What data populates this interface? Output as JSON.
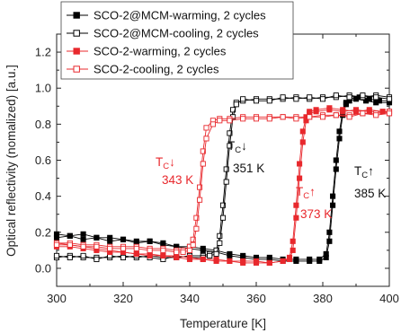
{
  "chart_data": {
    "type": "scatter",
    "xlabel": "Temperature [K]",
    "ylabel": "Optical reflectivity (nomalized) [a.u.]",
    "xlim": [
      300,
      400
    ],
    "ylim": [
      -0.1,
      1.3
    ],
    "xticks": [
      300,
      320,
      340,
      360,
      380,
      400
    ],
    "yticks": [
      0.0,
      0.2,
      0.4,
      0.6,
      0.8,
      1.0,
      1.2
    ],
    "ytick_labels": [
      "0.0",
      "0.2",
      "0.4",
      "0.6",
      "0.8",
      "1.0",
      "1.2"
    ],
    "grid": false,
    "legend_position": "top-left",
    "series": [
      {
        "name": "SCO-2@MCM-warming, 2 cycles",
        "color": "#000000",
        "marker": "filled-square",
        "cycles": [
          [
            [
              300,
              0.17
            ],
            [
              304,
              0.18
            ],
            [
              308,
              0.16
            ],
            [
              312,
              0.17
            ],
            [
              316,
              0.15
            ],
            [
              320,
              0.16
            ],
            [
              324,
              0.14
            ],
            [
              328,
              0.15
            ],
            [
              332,
              0.13
            ],
            [
              336,
              0.12
            ],
            [
              340,
              0.11
            ],
            [
              344,
              0.1
            ],
            [
              348,
              0.09
            ],
            [
              352,
              0.07
            ],
            [
              356,
              0.06
            ],
            [
              360,
              0.05
            ],
            [
              364,
              0.05
            ],
            [
              368,
              0.04
            ],
            [
              372,
              0.04
            ],
            [
              376,
              0.04
            ],
            [
              379,
              0.04
            ],
            [
              381,
              0.06
            ],
            [
              382,
              0.15
            ],
            [
              383,
              0.35
            ],
            [
              384,
              0.55
            ],
            [
              385,
              0.72
            ],
            [
              386,
              0.85
            ],
            [
              387,
              0.91
            ],
            [
              388,
              0.93
            ],
            [
              390,
              0.94
            ],
            [
              393,
              0.93
            ],
            [
              396,
              0.92
            ],
            [
              400,
              0.92
            ]
          ],
          [
            [
              300,
              0.19
            ],
            [
              304,
              0.18
            ],
            [
              308,
              0.19
            ],
            [
              312,
              0.17
            ],
            [
              316,
              0.17
            ],
            [
              320,
              0.16
            ],
            [
              324,
              0.15
            ],
            [
              328,
              0.15
            ],
            [
              332,
              0.14
            ],
            [
              336,
              0.12
            ],
            [
              340,
              0.12
            ],
            [
              344,
              0.11
            ],
            [
              348,
              0.1
            ],
            [
              352,
              0.08
            ],
            [
              356,
              0.07
            ],
            [
              360,
              0.06
            ],
            [
              364,
              0.06
            ],
            [
              368,
              0.05
            ],
            [
              372,
              0.05
            ],
            [
              376,
              0.05
            ],
            [
              379,
              0.05
            ],
            [
              381,
              0.08
            ],
            [
              382,
              0.2
            ],
            [
              383,
              0.4
            ],
            [
              384,
              0.6
            ],
            [
              385,
              0.76
            ],
            [
              386,
              0.87
            ],
            [
              387,
              0.92
            ],
            [
              388,
              0.94
            ],
            [
              391,
              0.95
            ],
            [
              394,
              0.94
            ],
            [
              397,
              0.93
            ],
            [
              400,
              0.93
            ]
          ]
        ]
      },
      {
        "name": "SCO-2@MCM-cooling, 2 cycles",
        "color": "#000000",
        "marker": "open-square",
        "cycles": [
          [
            [
              400,
              0.95
            ],
            [
              396,
              0.96
            ],
            [
              392,
              0.95
            ],
            [
              388,
              0.96
            ],
            [
              384,
              0.95
            ],
            [
              380,
              0.95
            ],
            [
              376,
              0.94
            ],
            [
              372,
              0.95
            ],
            [
              368,
              0.94
            ],
            [
              364,
              0.94
            ],
            [
              360,
              0.94
            ],
            [
              356,
              0.93
            ],
            [
              354,
              0.92
            ],
            [
              353,
              0.88
            ],
            [
              352,
              0.75
            ],
            [
              351,
              0.55
            ],
            [
              350,
              0.35
            ],
            [
              349,
              0.18
            ],
            [
              348,
              0.1
            ],
            [
              346,
              0.08
            ],
            [
              344,
              0.07
            ],
            [
              340,
              0.07
            ],
            [
              336,
              0.06
            ],
            [
              332,
              0.06
            ],
            [
              328,
              0.07
            ],
            [
              324,
              0.06
            ],
            [
              320,
              0.07
            ],
            [
              316,
              0.06
            ],
            [
              312,
              0.06
            ],
            [
              308,
              0.06
            ],
            [
              304,
              0.07
            ],
            [
              300,
              0.06
            ]
          ],
          [
            [
              400,
              0.94
            ],
            [
              396,
              0.95
            ],
            [
              392,
              0.96
            ],
            [
              388,
              0.95
            ],
            [
              384,
              0.96
            ],
            [
              380,
              0.94
            ],
            [
              376,
              0.95
            ],
            [
              372,
              0.94
            ],
            [
              368,
              0.95
            ],
            [
              364,
              0.93
            ],
            [
              360,
              0.93
            ],
            [
              356,
              0.94
            ],
            [
              354,
              0.91
            ],
            [
              353,
              0.84
            ],
            [
              352,
              0.68
            ],
            [
              351,
              0.48
            ],
            [
              350,
              0.28
            ],
            [
              349,
              0.14
            ],
            [
              348,
              0.08
            ],
            [
              346,
              0.07
            ],
            [
              344,
              0.06
            ],
            [
              340,
              0.06
            ],
            [
              336,
              0.07
            ],
            [
              332,
              0.05
            ],
            [
              328,
              0.06
            ],
            [
              324,
              0.07
            ],
            [
              320,
              0.06
            ],
            [
              316,
              0.07
            ],
            [
              312,
              0.05
            ],
            [
              308,
              0.07
            ],
            [
              304,
              0.06
            ],
            [
              300,
              0.07
            ]
          ]
        ]
      },
      {
        "name": "SCO-2-warming, 2 cycles",
        "color": "#e8282d",
        "marker": "filled-square",
        "cycles": [
          [
            [
              300,
              0.14
            ],
            [
              304,
              0.13
            ],
            [
              308,
              0.12
            ],
            [
              312,
              0.11
            ],
            [
              316,
              0.1
            ],
            [
              320,
              0.09
            ],
            [
              324,
              0.08
            ],
            [
              328,
              0.08
            ],
            [
              332,
              0.07
            ],
            [
              336,
              0.07
            ],
            [
              340,
              0.06
            ],
            [
              344,
              0.05
            ],
            [
              348,
              0.05
            ],
            [
              352,
              0.04
            ],
            [
              356,
              0.04
            ],
            [
              360,
              0.04
            ],
            [
              364,
              0.03
            ],
            [
              368,
              0.04
            ],
            [
              370,
              0.05
            ],
            [
              371,
              0.1
            ],
            [
              372,
              0.28
            ],
            [
              373,
              0.5
            ],
            [
              374,
              0.7
            ],
            [
              375,
              0.82
            ],
            [
              376,
              0.86
            ],
            [
              378,
              0.87
            ],
            [
              382,
              0.88
            ],
            [
              386,
              0.87
            ],
            [
              390,
              0.88
            ],
            [
              394,
              0.87
            ],
            [
              398,
              0.87
            ],
            [
              400,
              0.86
            ]
          ],
          [
            [
              300,
              0.12
            ],
            [
              304,
              0.12
            ],
            [
              308,
              0.11
            ],
            [
              312,
              0.1
            ],
            [
              316,
              0.09
            ],
            [
              320,
              0.09
            ],
            [
              324,
              0.08
            ],
            [
              328,
              0.07
            ],
            [
              332,
              0.07
            ],
            [
              336,
              0.06
            ],
            [
              340,
              0.05
            ],
            [
              344,
              0.05
            ],
            [
              348,
              0.04
            ],
            [
              352,
              0.04
            ],
            [
              356,
              0.03
            ],
            [
              360,
              0.03
            ],
            [
              364,
              0.03
            ],
            [
              368,
              0.04
            ],
            [
              370,
              0.06
            ],
            [
              371,
              0.15
            ],
            [
              372,
              0.35
            ],
            [
              373,
              0.58
            ],
            [
              374,
              0.76
            ],
            [
              375,
              0.84
            ],
            [
              376,
              0.87
            ],
            [
              378,
              0.88
            ],
            [
              382,
              0.89
            ],
            [
              386,
              0.88
            ],
            [
              390,
              0.87
            ],
            [
              394,
              0.88
            ],
            [
              398,
              0.87
            ],
            [
              400,
              0.87
            ]
          ]
        ]
      },
      {
        "name": "SCO-2-cooling, 2 cycles",
        "color": "#e8282d",
        "marker": "open-square",
        "cycles": [
          [
            [
              400,
              0.87
            ],
            [
              396,
              0.86
            ],
            [
              392,
              0.86
            ],
            [
              388,
              0.85
            ],
            [
              384,
              0.85
            ],
            [
              380,
              0.85
            ],
            [
              376,
              0.84
            ],
            [
              372,
              0.84
            ],
            [
              368,
              0.84
            ],
            [
              364,
              0.84
            ],
            [
              360,
              0.84
            ],
            [
              356,
              0.84
            ],
            [
              352,
              0.83
            ],
            [
              349,
              0.83
            ],
            [
              347,
              0.82
            ],
            [
              345,
              0.78
            ],
            [
              344,
              0.65
            ],
            [
              343,
              0.45
            ],
            [
              342,
              0.28
            ],
            [
              341,
              0.16
            ],
            [
              340,
              0.12
            ],
            [
              338,
              0.1
            ],
            [
              336,
              0.1
            ],
            [
              332,
              0.11
            ],
            [
              328,
              0.11
            ],
            [
              324,
              0.12
            ],
            [
              320,
              0.12
            ],
            [
              316,
              0.12
            ],
            [
              312,
              0.13
            ],
            [
              308,
              0.13
            ],
            [
              304,
              0.14
            ],
            [
              300,
              0.14
            ]
          ],
          [
            [
              400,
              0.86
            ],
            [
              396,
              0.85
            ],
            [
              392,
              0.86
            ],
            [
              388,
              0.84
            ],
            [
              384,
              0.85
            ],
            [
              380,
              0.84
            ],
            [
              376,
              0.84
            ],
            [
              372,
              0.83
            ],
            [
              368,
              0.84
            ],
            [
              364,
              0.83
            ],
            [
              360,
              0.83
            ],
            [
              356,
              0.83
            ],
            [
              352,
              0.82
            ],
            [
              349,
              0.82
            ],
            [
              347,
              0.8
            ],
            [
              345,
              0.72
            ],
            [
              344,
              0.58
            ],
            [
              343,
              0.38
            ],
            [
              342,
              0.22
            ],
            [
              341,
              0.13
            ],
            [
              340,
              0.1
            ],
            [
              338,
              0.09
            ],
            [
              336,
              0.09
            ],
            [
              332,
              0.1
            ],
            [
              328,
              0.1
            ],
            [
              324,
              0.11
            ],
            [
              320,
              0.11
            ],
            [
              316,
              0.11
            ],
            [
              312,
              0.12
            ],
            [
              308,
              0.12
            ],
            [
              304,
              0.13
            ],
            [
              300,
              0.13
            ]
          ]
        ]
      }
    ],
    "annotations": [
      {
        "main": "T",
        "sub": "C",
        "arrow": "↓",
        "value": "343 K",
        "color": "#e8282d"
      },
      {
        "main": "T",
        "sub": "C",
        "arrow": "↓",
        "value": "351 K",
        "color": "#111111"
      },
      {
        "main": "T",
        "sub": "C",
        "arrow": "↑",
        "value": "373 K",
        "color": "#e8282d"
      },
      {
        "main": "T",
        "sub": "C",
        "arrow": "↑",
        "value": "385 K",
        "color": "#111111"
      }
    ]
  }
}
